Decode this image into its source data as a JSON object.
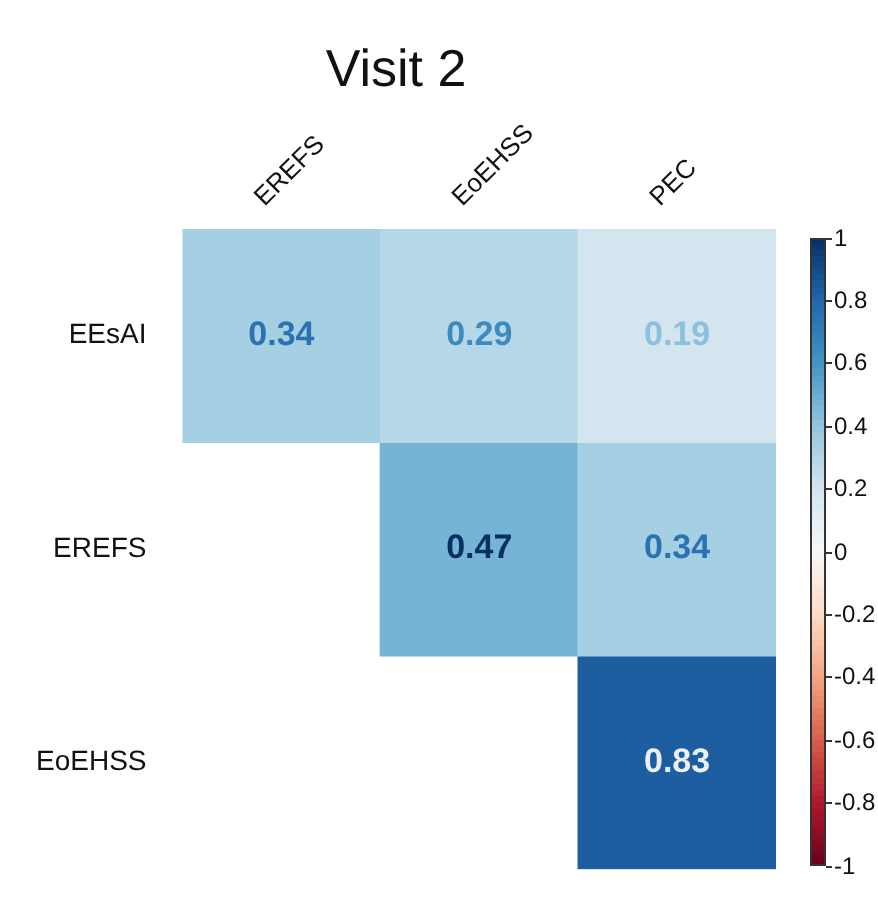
{
  "chart_data": {
    "type": "heatmap",
    "title": "Visit 2",
    "categories": [
      "EREFS",
      "EoEHSS",
      "PEC"
    ],
    "y_categories": [
      "EEsAI",
      "EREFS",
      "EoEHSS"
    ],
    "cells": [
      [
        0.34,
        0.29,
        0.19
      ],
      [
        null,
        0.47,
        0.34
      ],
      [
        null,
        null,
        0.83
      ]
    ],
    "data_labels": true,
    "clim": [
      -1,
      1
    ],
    "cticks": [
      1,
      0.8,
      0.6,
      0.4,
      0.2,
      0,
      -0.2,
      -0.4,
      -0.6,
      -0.8,
      -1
    ],
    "colors": [
      "#053061",
      "#2166ac",
      "#4393c3",
      "#92c5de",
      "#d1e5f0",
      "#f7f7f7",
      "#fddbc7",
      "#f4a582",
      "#d6604d",
      "#b2182b",
      "#67001f"
    ]
  }
}
